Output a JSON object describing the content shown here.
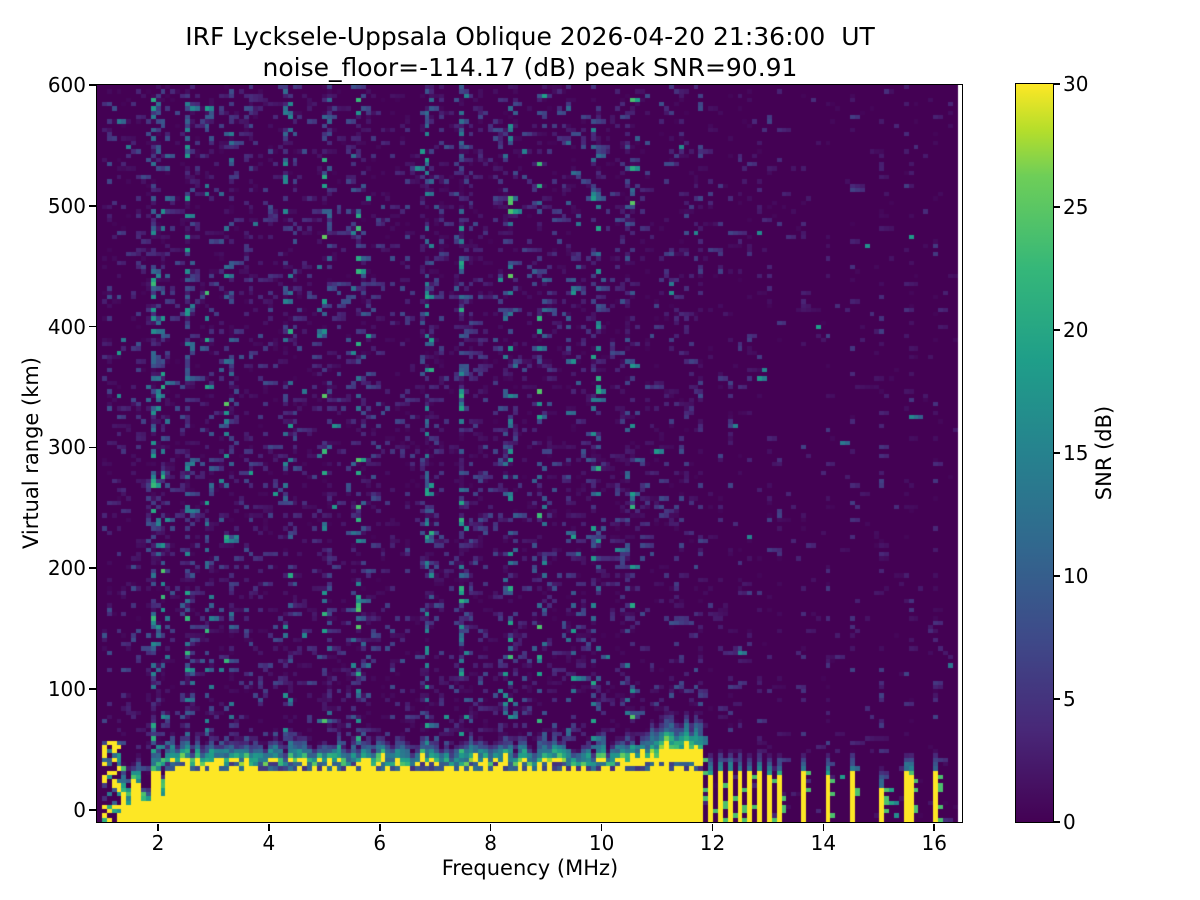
{
  "figure": {
    "title_line1": "IRF Lycksele-Uppsala Oblique 2026-04-20 21:36:00  UT",
    "title_line2": "noise_floor=-114.17 (dB) peak SNR=90.91"
  },
  "chart_data": {
    "type": "heatmap",
    "title": "IRF Lycksele-Uppsala Oblique 2026-04-20 21:36:00  UT",
    "subtitle": "noise_floor=-114.17 (dB) peak SNR=90.91",
    "station": "IRF Lycksele-Uppsala",
    "sounding_mode": "Oblique",
    "timestamp_ut": "2026-04-20 21:36:00",
    "noise_floor_db": -114.17,
    "peak_snr_db": 90.91,
    "xlabel": "Frequency (MHz)",
    "ylabel": "Virtual range (km)",
    "colorbar_label": "SNR (dB)",
    "xlim": [
      0.9,
      16.5
    ],
    "ylim": [
      -10,
      600
    ],
    "clim": [
      0,
      30
    ],
    "x_ticks": [
      2,
      4,
      6,
      8,
      10,
      12,
      14,
      16
    ],
    "y_ticks": [
      0,
      100,
      200,
      300,
      400,
      500,
      600
    ],
    "colorbar_ticks": [
      0,
      5,
      10,
      15,
      20,
      25,
      30
    ],
    "grid": false,
    "colormap": "viridis",
    "colormap_stops": [
      [
        0.0,
        "#440154"
      ],
      [
        0.125,
        "#482878"
      ],
      [
        0.25,
        "#3e4a89"
      ],
      [
        0.375,
        "#31688e"
      ],
      [
        0.5,
        "#26828e"
      ],
      [
        0.625,
        "#1f9e89"
      ],
      [
        0.75,
        "#35b779"
      ],
      [
        0.875,
        "#6ece58"
      ],
      [
        0.9375,
        "#b5de2b"
      ],
      [
        1.0,
        "#fde725"
      ]
    ],
    "features": {
      "data_freq_range_mhz": [
        1.0,
        16.42
      ],
      "empty_left_edge_mhz": [
        0.9,
        1.02
      ],
      "groundwave_band": {
        "freq_range_mhz": [
          1.32,
          11.82
        ],
        "snr_db": 30,
        "solid_top_km": 40,
        "transition_top_km": 62,
        "bump_center_mhz": 11.35,
        "bump_extra_km": 14,
        "dark_line_km": 35,
        "ragged_start_mhz": [
          1.02,
          1.32
        ],
        "gap_columns_mhz": [
          1.47,
          1.78,
          2.07
        ]
      },
      "isolated_stripes_mhz": [
        11.93,
        12.15,
        12.33,
        12.51,
        12.68,
        12.85,
        13.02,
        13.17,
        13.63,
        14.08,
        14.55,
        15.05,
        15.54,
        16.04
      ],
      "short_stripe_mhz": 15.05,
      "stripe_top_km": 32,
      "background_noise_db_range": [
        0,
        16
      ],
      "noisy_columns_mhz": [
        1.92,
        2.1,
        2.55,
        2.9,
        3.25,
        4.35,
        5.0,
        5.6,
        6.9,
        7.5,
        8.35,
        8.9,
        9.5,
        9.9,
        10.55
      ]
    }
  }
}
